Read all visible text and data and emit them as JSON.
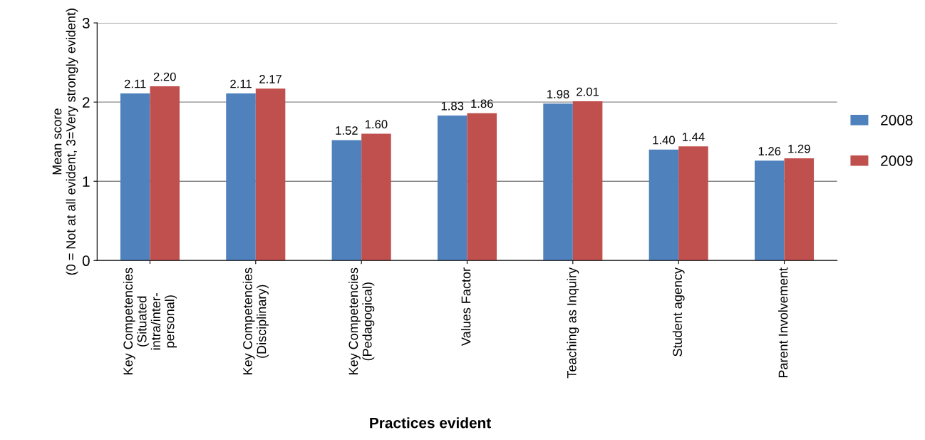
{
  "chart_data": {
    "type": "bar",
    "xlabel": "Practices evident",
    "ylabel": "Mean score\n(0 = Not at all evident, 3=Very strongly evident)",
    "categories": [
      "Key Competencies\n(Situated\nintra/inter-\npersonal)",
      "Key Competencies\n(Disciplinary)",
      "Key Competencies\n(Pedagogical)",
      "Values Factor",
      "Teaching as Inquiry",
      "Student agency",
      "Parent Involvement"
    ],
    "series": [
      {
        "name": "2008",
        "color": "#4f81bd",
        "values": [
          2.11,
          2.11,
          1.52,
          1.83,
          1.98,
          1.4,
          1.26
        ],
        "value_labels": [
          "2.11",
          "2.11",
          "1.52",
          "1.83",
          "1.98",
          "1.40",
          "1.26"
        ]
      },
      {
        "name": "2009",
        "color": "#c0504d",
        "values": [
          2.2,
          2.17,
          1.6,
          1.86,
          2.01,
          1.44,
          1.29
        ],
        "value_labels": [
          "2.20",
          "2.17",
          "1.60",
          "1.86",
          "2.01",
          "1.44",
          "1.29"
        ]
      }
    ],
    "ylim": [
      0,
      3
    ],
    "yticks": [
      0,
      1,
      2,
      3
    ],
    "grid": "y",
    "legend": "right"
  }
}
